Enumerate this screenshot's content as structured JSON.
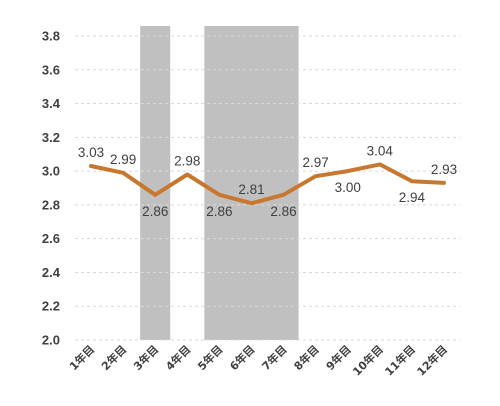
{
  "chart_data": {
    "type": "line",
    "title": "",
    "xlabel": "",
    "ylabel": "",
    "categories": [
      "1年目",
      "2年目",
      "3年目",
      "4年目",
      "5年目",
      "6年目",
      "7年目",
      "8年目",
      "9年目",
      "10年目",
      "11年目",
      "12年目"
    ],
    "series": [
      {
        "values": [
          3.03,
          2.99,
          2.86,
          2.98,
          2.86,
          2.81,
          2.86,
          2.97,
          3.0,
          3.04,
          2.94,
          2.93
        ]
      }
    ],
    "data_labels": [
      "3.03",
      "2.99",
      "2.86",
      "2.98",
      "2.86",
      "2.81",
      "2.86",
      "2.97",
      "3.00",
      "3.04",
      "2.94",
      "2.93"
    ],
    "data_label_positions": [
      "above",
      "above",
      "below",
      "above",
      "below",
      "above",
      "below",
      "above",
      "below",
      "above",
      "below",
      "above"
    ],
    "y_ticks": [
      "2.0",
      "2.2",
      "2.4",
      "2.6",
      "2.8",
      "3.0",
      "3.2",
      "3.4",
      "3.6",
      "3.8"
    ],
    "ylim": [
      2.0,
      3.8
    ],
    "grid": true,
    "legend": "none",
    "highlight_ranges": [
      {
        "from": "3年目",
        "to": "3年目"
      },
      {
        "from": "5年目",
        "to": "7年目"
      }
    ],
    "colors": {
      "line": "#c8782e",
      "highlight": "#c0c0c0",
      "grid": "#d9d9d9",
      "text": "#404040"
    }
  }
}
